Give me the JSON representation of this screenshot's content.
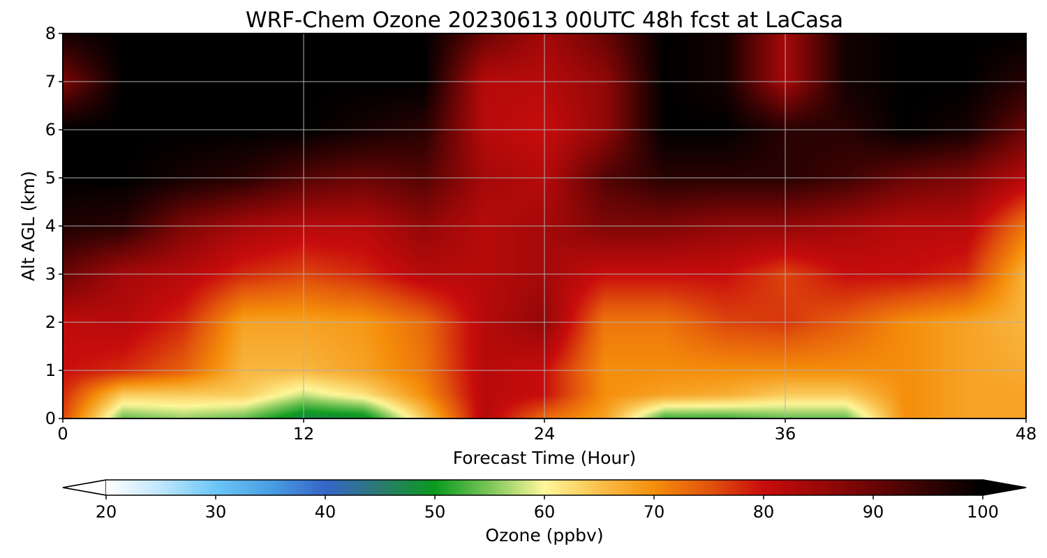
{
  "chart_data": {
    "type": "heatmap",
    "title": "WRF-Chem Ozone  20230613 00UTC 48h fcst at LaCasa",
    "xlabel": "Forecast Time (Hour)",
    "ylabel": "Alt AGL (km)",
    "xlim": [
      0,
      48
    ],
    "ylim": [
      0,
      8
    ],
    "xticks": [
      0,
      12,
      24,
      36,
      48
    ],
    "yticks": [
      0,
      1,
      2,
      3,
      4,
      5,
      6,
      7,
      8
    ],
    "grid": true,
    "colorbar": {
      "label": "Ozone  (ppbv)",
      "orientation": "horizontal",
      "position": "bottom",
      "extend": "both",
      "vmin": 20,
      "vmax": 100,
      "ticks": [
        20,
        30,
        40,
        50,
        60,
        70,
        80,
        90,
        100
      ],
      "colors": [
        {
          "v": 20,
          "c": "#ffffff"
        },
        {
          "v": 25,
          "c": "#bfe6fb"
        },
        {
          "v": 30,
          "c": "#6cc6f6"
        },
        {
          "v": 35,
          "c": "#4a9ee2"
        },
        {
          "v": 40,
          "c": "#3565c8"
        },
        {
          "v": 45,
          "c": "#2b7a70"
        },
        {
          "v": 50,
          "c": "#0a9a1e"
        },
        {
          "v": 55,
          "c": "#7cc65a"
        },
        {
          "v": 60,
          "c": "#fff79a"
        },
        {
          "v": 65,
          "c": "#f9c04c"
        },
        {
          "v": 70,
          "c": "#f58e0a"
        },
        {
          "v": 75,
          "c": "#e2540c"
        },
        {
          "v": 80,
          "c": "#c80c0c"
        },
        {
          "v": 85,
          "c": "#9c0808"
        },
        {
          "v": 90,
          "c": "#6a0505"
        },
        {
          "v": 95,
          "c": "#330202"
        },
        {
          "v": 100,
          "c": "#000000"
        }
      ]
    },
    "field": {
      "hours": [
        0,
        3,
        6,
        9,
        12,
        15,
        18,
        21,
        24,
        27,
        30,
        33,
        36,
        39,
        42,
        45,
        48
      ],
      "altitudes_km": [
        0,
        0.5,
        1,
        2,
        3,
        4,
        5,
        6,
        7,
        8
      ],
      "ozone_ppbv": [
        [
          76,
          54,
          56,
          54,
          47,
          48,
          64,
          82,
          73,
          68,
          52,
          52,
          54,
          54,
          70,
          68,
          68
        ],
        [
          78,
          64,
          64,
          64,
          58,
          62,
          70,
          82,
          80,
          70,
          68,
          67,
          64,
          64,
          70,
          68,
          68
        ],
        [
          80,
          78,
          74,
          66,
          66,
          68,
          72,
          82,
          80,
          70,
          70,
          70,
          70,
          70,
          70,
          68,
          67
        ],
        [
          81,
          82,
          78,
          68,
          68,
          69,
          73,
          82,
          86,
          72,
          72,
          76,
          77,
          74,
          70,
          68,
          66
        ],
        [
          90,
          84,
          82,
          78,
          76,
          78,
          82,
          82,
          84,
          80,
          80,
          80,
          76,
          80,
          80,
          78,
          66
        ],
        [
          97,
          96,
          88,
          84,
          82,
          82,
          86,
          82,
          84,
          88,
          88,
          86,
          86,
          84,
          82,
          82,
          72
        ],
        [
          100,
          100,
          98,
          96,
          92,
          90,
          92,
          84,
          82,
          92,
          96,
          96,
          96,
          94,
          90,
          88,
          82
        ],
        [
          100,
          100,
          100,
          100,
          100,
          98,
          96,
          82,
          80,
          86,
          100,
          100,
          96,
          96,
          100,
          98,
          90
        ],
        [
          88,
          100,
          100,
          100,
          100,
          100,
          100,
          82,
          82,
          86,
          100,
          98,
          84,
          98,
          100,
          100,
          96
        ],
        [
          98,
          100,
          100,
          100,
          100,
          100,
          100,
          90,
          84,
          90,
          100,
          98,
          84,
          98,
          100,
          100,
          100
        ]
      ]
    }
  }
}
